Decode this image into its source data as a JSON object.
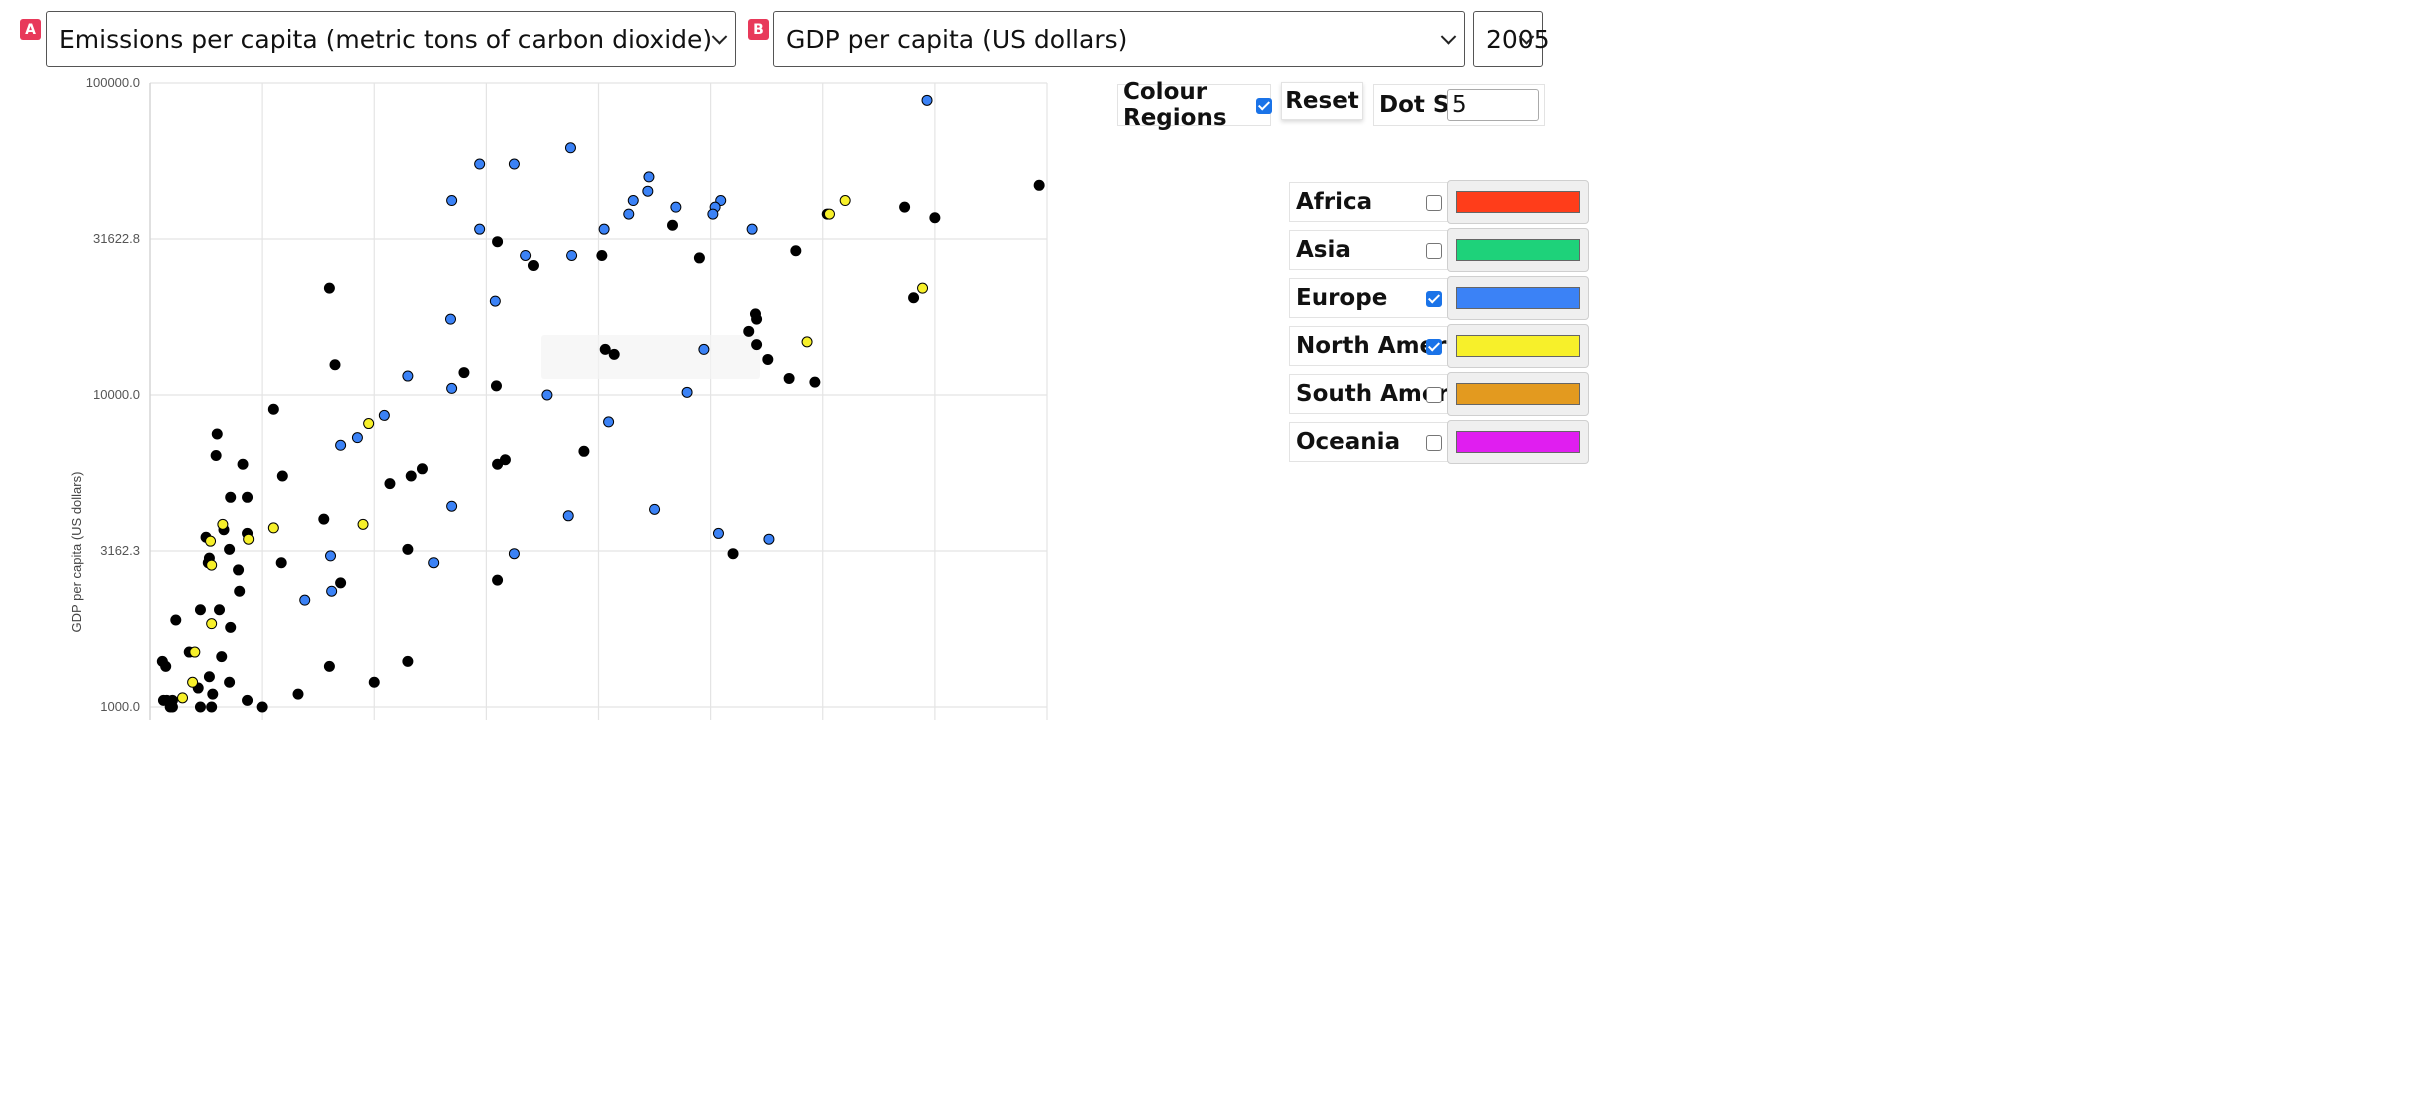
{
  "controls": {
    "a_badge": "A",
    "b_badge": "B",
    "x_select": "Emissions per capita (metric tons of carbon dioxide)",
    "y_select": "GDP per capita (US dollars)",
    "year_select": "2005",
    "colour_regions_label": "Colour Regions",
    "colour_regions_checked": true,
    "reset_label": "Reset",
    "dot_size_label": "Dot Size",
    "dot_size_value": "5"
  },
  "legend": [
    {
      "name": "Africa",
      "checked": false,
      "color": "#ff3d1a"
    },
    {
      "name": "Asia",
      "checked": false,
      "color": "#1ed27a"
    },
    {
      "name": "Europe",
      "checked": true,
      "color": "#3b82f6"
    },
    {
      "name": "North America",
      "checked": true,
      "color": "#f7f02a"
    },
    {
      "name": "South America",
      "checked": false,
      "color": "#e39a1f"
    },
    {
      "name": "Oceania",
      "checked": false,
      "color": "#e01ef0"
    }
  ],
  "chart_data": {
    "type": "scatter",
    "ylabel": "GDP per capita (US dollars)",
    "y_scale": "log",
    "y_ticks": [
      "100000.0",
      "31622.8",
      "10000.0",
      "3162.3",
      "1000.0"
    ],
    "ylim": [
      1000,
      100000
    ],
    "xlim": [
      0,
      8
    ],
    "x_vertical_gridlines": 8,
    "grid": true,
    "default_color": "#000000",
    "series": [
      {
        "name": "Europe",
        "color": "#3b82f6",
        "points": [
          [
            6.93,
            88000
          ],
          [
            3.75,
            62000
          ],
          [
            2.94,
            55000
          ],
          [
            3.25,
            55000
          ],
          [
            4.45,
            50000
          ],
          [
            4.44,
            45000
          ],
          [
            2.69,
            42000
          ],
          [
            4.31,
            42000
          ],
          [
            5.09,
            42000
          ],
          [
            4.69,
            40000
          ],
          [
            5.04,
            40000
          ],
          [
            4.27,
            38000
          ],
          [
            5.02,
            38000
          ],
          [
            2.94,
            34000
          ],
          [
            4.05,
            34000
          ],
          [
            5.37,
            34000
          ],
          [
            3.35,
            28000
          ],
          [
            3.76,
            28000
          ],
          [
            3.08,
            20000
          ],
          [
            2.68,
            17500
          ],
          [
            4.94,
            14000
          ],
          [
            2.3,
            11500
          ],
          [
            2.69,
            10500
          ],
          [
            3.54,
            10000
          ],
          [
            2.09,
            8600
          ],
          [
            4.09,
            8200
          ],
          [
            4.79,
            10200
          ],
          [
            1.85,
            7300
          ],
          [
            1.7,
            6900
          ],
          [
            2.69,
            4400
          ],
          [
            4.5,
            4300
          ],
          [
            3.73,
            4100
          ],
          [
            5.07,
            3600
          ],
          [
            5.52,
            3450
          ],
          [
            1.61,
            3050
          ],
          [
            3.25,
            3100
          ],
          [
            2.53,
            2900
          ],
          [
            1.62,
            2350
          ],
          [
            1.38,
            2200
          ]
        ]
      },
      {
        "name": "North America",
        "color": "#f7f02a",
        "points": [
          [
            6.2,
            42000
          ],
          [
            6.06,
            38000
          ],
          [
            6.89,
            22000
          ],
          [
            5.86,
            14800
          ],
          [
            1.95,
            8100
          ],
          [
            1.9,
            3850
          ],
          [
            0.65,
            3850
          ],
          [
            1.1,
            3750
          ],
          [
            0.88,
            3450
          ],
          [
            0.54,
            3400
          ],
          [
            0.55,
            2850
          ],
          [
            0.55,
            1850
          ],
          [
            0.4,
            1500
          ],
          [
            0.38,
            1200
          ],
          [
            0.29,
            1070
          ]
        ]
      },
      {
        "name": "Other",
        "color": "#000000",
        "points": [
          [
            7.93,
            47000
          ],
          [
            6.73,
            40000
          ],
          [
            6.04,
            38000
          ],
          [
            7.0,
            37000
          ],
          [
            4.66,
            35000
          ],
          [
            5.76,
            29000
          ],
          [
            3.1,
            31000
          ],
          [
            4.03,
            28000
          ],
          [
            4.9,
            27500
          ],
          [
            3.42,
            26000
          ],
          [
            1.6,
            22000
          ],
          [
            6.81,
            20500
          ],
          [
            5.4,
            18200
          ],
          [
            5.41,
            17500
          ],
          [
            5.34,
            16000
          ],
          [
            5.41,
            14500
          ],
          [
            4.06,
            14000
          ],
          [
            4.14,
            13500
          ],
          [
            5.51,
            13000
          ],
          [
            1.65,
            12500
          ],
          [
            2.8,
            11800
          ],
          [
            5.7,
            11300
          ],
          [
            5.93,
            11000
          ],
          [
            3.09,
            10700
          ],
          [
            1.1,
            9000
          ],
          [
            0.6,
            7500
          ],
          [
            3.87,
            6600
          ],
          [
            3.17,
            6200
          ],
          [
            3.1,
            6000
          ],
          [
            0.59,
            6400
          ],
          [
            0.83,
            6000
          ],
          [
            2.43,
            5800
          ],
          [
            2.33,
            5500
          ],
          [
            2.14,
            5200
          ],
          [
            1.18,
            5500
          ],
          [
            0.72,
            4700
          ],
          [
            0.87,
            4700
          ],
          [
            1.55,
            4000
          ],
          [
            0.66,
            3700
          ],
          [
            5.2,
            3100
          ],
          [
            0.87,
            3600
          ],
          [
            0.5,
            3500
          ],
          [
            0.71,
            3200
          ],
          [
            0.52,
            2900
          ],
          [
            2.3,
            3200
          ],
          [
            0.53,
            3000
          ],
          [
            1.17,
            2900
          ],
          [
            0.79,
            2750
          ],
          [
            1.7,
            2500
          ],
          [
            3.1,
            2550
          ],
          [
            0.8,
            2350
          ],
          [
            0.45,
            2050
          ],
          [
            0.62,
            2050
          ],
          [
            0.23,
            1900
          ],
          [
            0.72,
            1800
          ],
          [
            0.35,
            1500
          ],
          [
            0.64,
            1450
          ],
          [
            2.3,
            1400
          ],
          [
            0.11,
            1400
          ],
          [
            1.6,
            1350
          ],
          [
            2.0,
            1200
          ],
          [
            0.14,
            1350
          ],
          [
            0.53,
            1250
          ],
          [
            0.71,
            1200
          ],
          [
            0.43,
            1150
          ],
          [
            0.56,
            1100
          ],
          [
            0.2,
            1050
          ],
          [
            1.32,
            1100
          ],
          [
            0.87,
            1050
          ],
          [
            1.0,
            1000
          ],
          [
            0.15,
            1050
          ],
          [
            0.2,
            1000
          ],
          [
            0.12,
            1050
          ],
          [
            0.18,
            1000
          ],
          [
            0.45,
            1000
          ],
          [
            0.55,
            1000
          ]
        ]
      }
    ]
  }
}
